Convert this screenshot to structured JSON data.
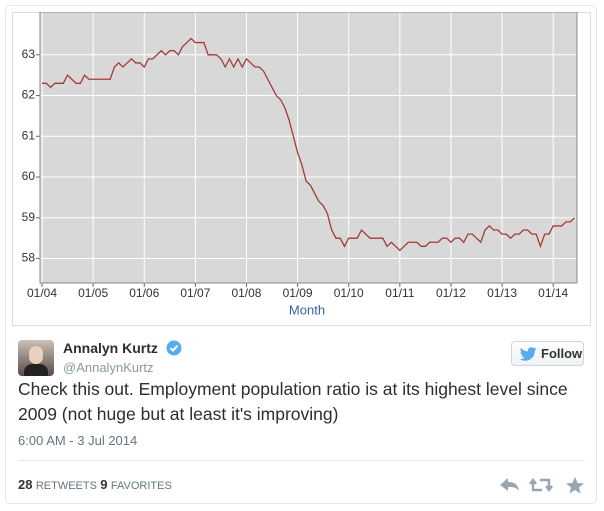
{
  "chart_data": {
    "type": "line",
    "x_label": "Month",
    "color": "#a33a3a",
    "grid": true,
    "categories": [
      "01/04",
      null,
      null,
      null,
      null,
      null,
      null,
      null,
      null,
      null,
      null,
      null,
      "01/05",
      null,
      null,
      null,
      null,
      null,
      null,
      null,
      null,
      null,
      null,
      null,
      "01/06",
      null,
      null,
      null,
      null,
      null,
      null,
      null,
      null,
      null,
      null,
      null,
      "01/07",
      null,
      null,
      null,
      null,
      null,
      null,
      null,
      null,
      null,
      null,
      null,
      "01/08",
      null,
      null,
      null,
      null,
      null,
      null,
      null,
      null,
      null,
      null,
      null,
      "01/09",
      null,
      null,
      null,
      null,
      null,
      null,
      null,
      null,
      null,
      null,
      null,
      "01/10",
      null,
      null,
      null,
      null,
      null,
      null,
      null,
      null,
      null,
      null,
      null,
      "01/11",
      null,
      null,
      null,
      null,
      null,
      null,
      null,
      null,
      null,
      null,
      null,
      "01/12",
      null,
      null,
      null,
      null,
      null,
      null,
      null,
      null,
      null,
      null,
      null,
      "01/13",
      null,
      null,
      null,
      null,
      null,
      null,
      null,
      null,
      null,
      null,
      null,
      "01/14",
      null,
      null,
      null,
      null,
      null
    ],
    "values": [
      62.3,
      62.3,
      62.2,
      62.3,
      62.3,
      62.3,
      62.5,
      62.4,
      62.3,
      62.3,
      62.5,
      62.4,
      62.4,
      62.4,
      62.4,
      62.4,
      62.4,
      62.7,
      62.8,
      62.7,
      62.8,
      62.9,
      62.8,
      62.8,
      62.7,
      62.9,
      62.9,
      63.0,
      63.1,
      63.0,
      63.1,
      63.1,
      63.0,
      63.2,
      63.3,
      63.4,
      63.3,
      63.3,
      63.3,
      63.0,
      63.0,
      63.0,
      62.9,
      62.7,
      62.9,
      62.7,
      62.9,
      62.7,
      62.9,
      62.8,
      62.7,
      62.7,
      62.6,
      62.4,
      62.2,
      62.0,
      61.9,
      61.7,
      61.4,
      61.0,
      60.6,
      60.3,
      59.9,
      59.8,
      59.6,
      59.4,
      59.3,
      59.1,
      58.7,
      58.5,
      58.5,
      58.3,
      58.5,
      58.5,
      58.5,
      58.7,
      58.6,
      58.5,
      58.5,
      58.5,
      58.5,
      58.3,
      58.4,
      58.3,
      58.2,
      58.3,
      58.4,
      58.4,
      58.4,
      58.3,
      58.3,
      58.4,
      58.4,
      58.4,
      58.5,
      58.5,
      58.4,
      58.5,
      58.5,
      58.4,
      58.6,
      58.6,
      58.5,
      58.4,
      58.7,
      58.8,
      58.7,
      58.7,
      58.6,
      58.6,
      58.5,
      58.6,
      58.6,
      58.7,
      58.7,
      58.6,
      58.6,
      58.3,
      58.6,
      58.6,
      58.8,
      58.8,
      58.8,
      58.9,
      58.9,
      59.0
    ],
    "ylim": [
      57.4,
      64.05
    ],
    "yticks": [
      58,
      59,
      60,
      61,
      62,
      63
    ]
  },
  "tweet": {
    "author": "Annalyn Kurtz",
    "handle": "@AnnalynKurtz",
    "follow": "Follow",
    "text": "Check this out. Employment population ratio is at its highest level since 2009 (not huge but at least it's improving)",
    "timestamp": "6:00 AM - 3 Jul 2014",
    "retweets": "28",
    "retweets_label": "RETWEETS",
    "favorites": "9",
    "favorites_label": "FAVORITES"
  }
}
